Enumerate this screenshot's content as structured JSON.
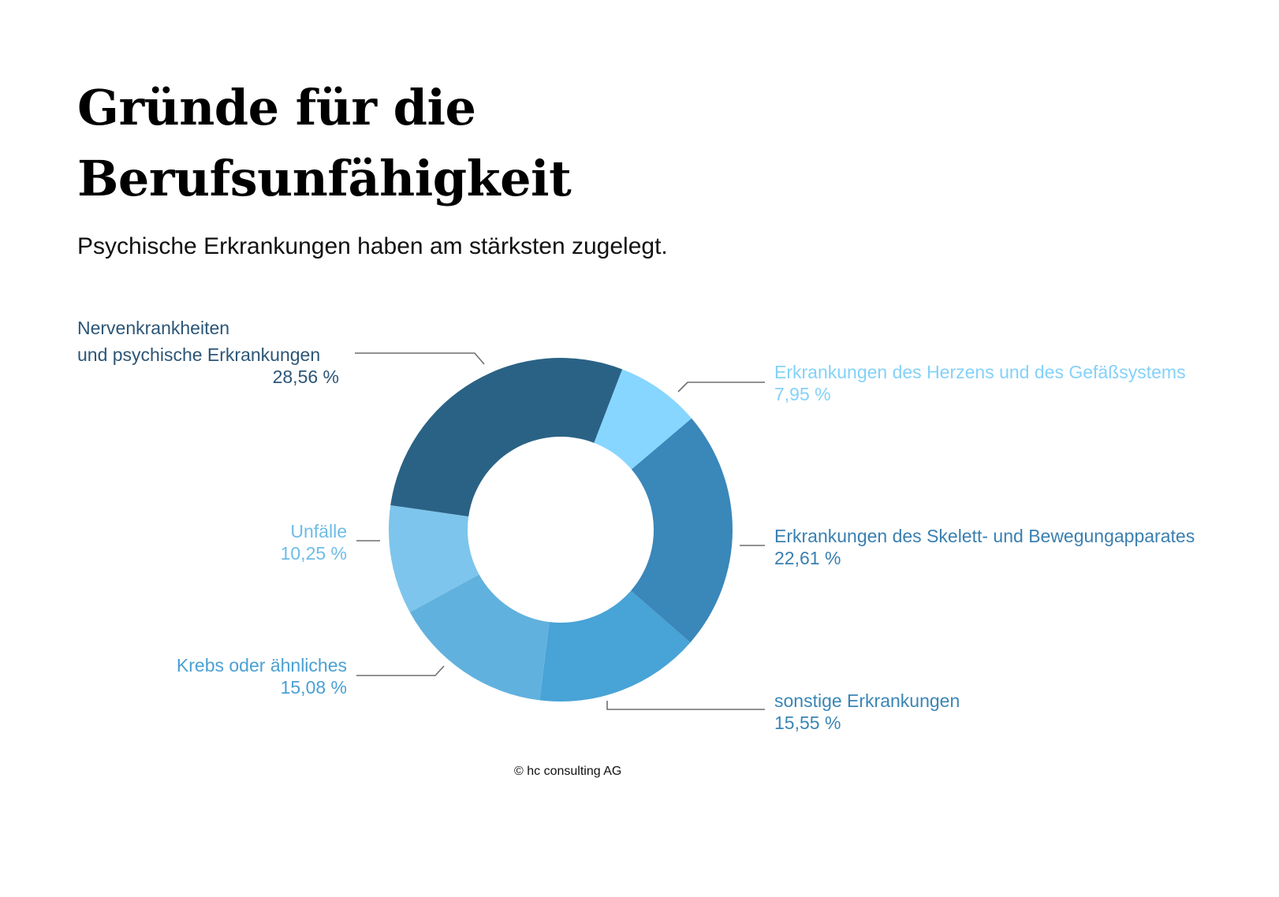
{
  "header": {
    "title_line1": "Gründe für die",
    "title_line2": "Berufsunfähigkeit",
    "subtitle": "Psychische Erkrankungen haben am stärksten zugelegt."
  },
  "footer": {
    "copyright": "© hc consulting AG"
  },
  "chart_data": {
    "type": "pie",
    "style": "donut",
    "legend": "callout labels",
    "start_angle_deg": 21,
    "slices": [
      {
        "id": "herz",
        "label_lines": [
          "Erkrankungen des Herzens und des Gefäßsystems"
        ],
        "value": 7.95,
        "value_label": "7,95 %",
        "color": "#87d6ff",
        "label_color": "#84d1fa"
      },
      {
        "id": "skelett",
        "label_lines": [
          "Erkrankungen des Skelett- und Bewegungapparates"
        ],
        "value": 22.61,
        "value_label": "22,61 %",
        "color": "#3a87ba",
        "label_color": "#3a7faf"
      },
      {
        "id": "sonstige",
        "label_lines": [
          "sonstige Erkrankungen"
        ],
        "value": 15.55,
        "value_label": "15,55 %",
        "color": "#48a3d6",
        "label_color": "#3a85b5"
      },
      {
        "id": "krebs",
        "label_lines": [
          "Krebs oder ähnliches"
        ],
        "value": 15.08,
        "value_label": "15,08 %",
        "color": "#61b1de",
        "label_color": "#4aa0d4"
      },
      {
        "id": "unfaelle",
        "label_lines": [
          "Unfälle"
        ],
        "value": 10.25,
        "value_label": "10,25 %",
        "color": "#7dc5ec",
        "label_color": "#6fbce6"
      },
      {
        "id": "nerven",
        "label_lines": [
          "Nervenkrankheiten",
          "und psychische Erkrankungen"
        ],
        "value": 28.56,
        "value_label": "28,56 %",
        "color": "#2a6285",
        "label_color": "#2c5677"
      }
    ]
  }
}
